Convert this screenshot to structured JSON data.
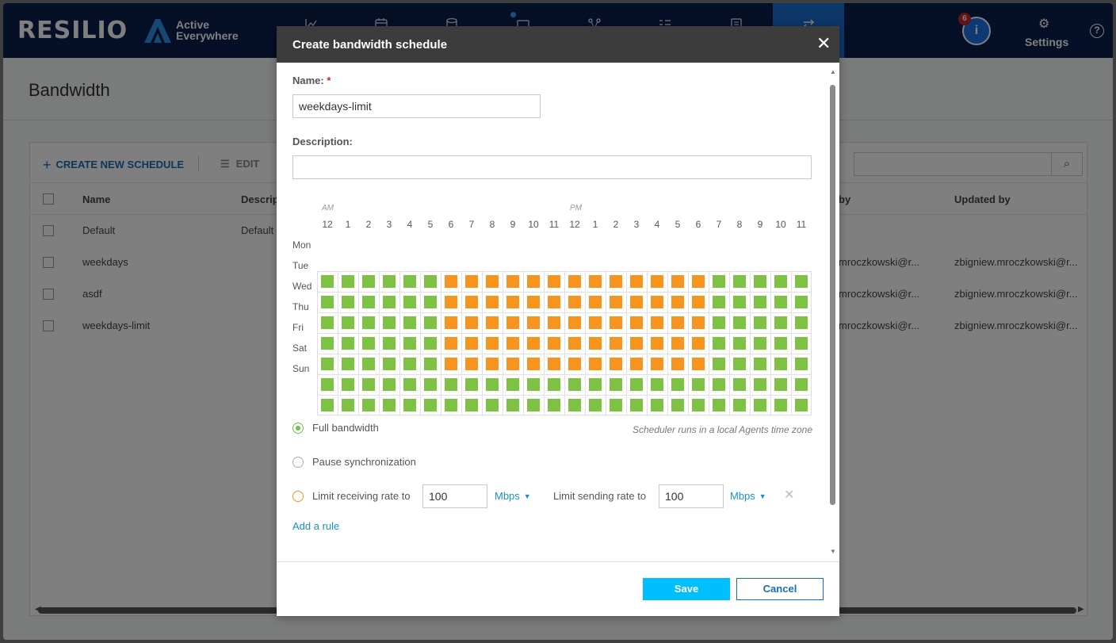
{
  "header": {
    "brand": "RESILIO",
    "brand_sub_line1": "Active",
    "brand_sub_line2": "Everywhere",
    "notification_count": "6",
    "settings_label": "Settings",
    "help_label": "?"
  },
  "page": {
    "title": "Bandwidth",
    "toolbar": {
      "create_label": "CREATE NEW SCHEDULE",
      "edit_label": "EDIT"
    },
    "table": {
      "columns": [
        "Name",
        "Descrip",
        "by",
        "Updated by"
      ],
      "rows": [
        {
          "name": "Default",
          "description": "Default",
          "created_by": "",
          "updated_by": ""
        },
        {
          "name": "weekdays",
          "description": "",
          "created_by": "mroczkowski@r...",
          "updated_by": "zbigniew.mroczkowski@r..."
        },
        {
          "name": "asdf",
          "description": "",
          "created_by": "mroczkowski@r...",
          "updated_by": "zbigniew.mroczkowski@r..."
        },
        {
          "name": "weekdays-limit",
          "description": "",
          "created_by": "mroczkowski@r...",
          "updated_by": "zbigniew.mroczkowski@r..."
        }
      ]
    }
  },
  "modal": {
    "title": "Create bandwidth schedule",
    "name_label": "Name:",
    "name_required": "*",
    "name_value": "weekdays-limit",
    "description_label": "Description:",
    "description_value": "",
    "scheduler": {
      "am_label": "AM",
      "pm_label": "PM",
      "hours": [
        "12",
        "1",
        "2",
        "3",
        "4",
        "5",
        "6",
        "7",
        "8",
        "9",
        "10",
        "11",
        "12",
        "1",
        "2",
        "3",
        "4",
        "5",
        "6",
        "7",
        "8",
        "9",
        "10",
        "11"
      ],
      "days": [
        "Mon",
        "Tue",
        "Wed",
        "Thu",
        "Fri",
        "Sat",
        "Sun"
      ],
      "schedule_rows": [
        "GGGGGGOOOOOOOOOOOOOGGGGG",
        "GGGGGGOOOOOOOOOOOOOGGGGG",
        "GGGGGGOOOOOOOOOOOOOGGGGG",
        "GGGGGGOOOOOOOOOOOOOGGGGG",
        "GGGGGGOOOOOOOOOOOOOGGGGG",
        "GGGGGGGGGGGGGGGGGGGGGGGG",
        "GGGGGGGGGGGGGGGGGGGGGGGG"
      ],
      "legend_colors": {
        "G": "#7dc242",
        "O": "#f7941d"
      },
      "timezone_note": "Scheduler runs in a local Agents time zone"
    },
    "rules": {
      "full_bandwidth": "Full bandwidth",
      "pause_sync": "Pause synchronization",
      "limit_receiving": "Limit receiving rate to",
      "receiving_value": "100",
      "receiving_unit": "Mbps",
      "limit_sending": "Limit sending rate to",
      "sending_value": "100",
      "sending_unit": "Mbps",
      "add_rule": "Add a rule"
    },
    "save_label": "Save",
    "cancel_label": "Cancel"
  }
}
